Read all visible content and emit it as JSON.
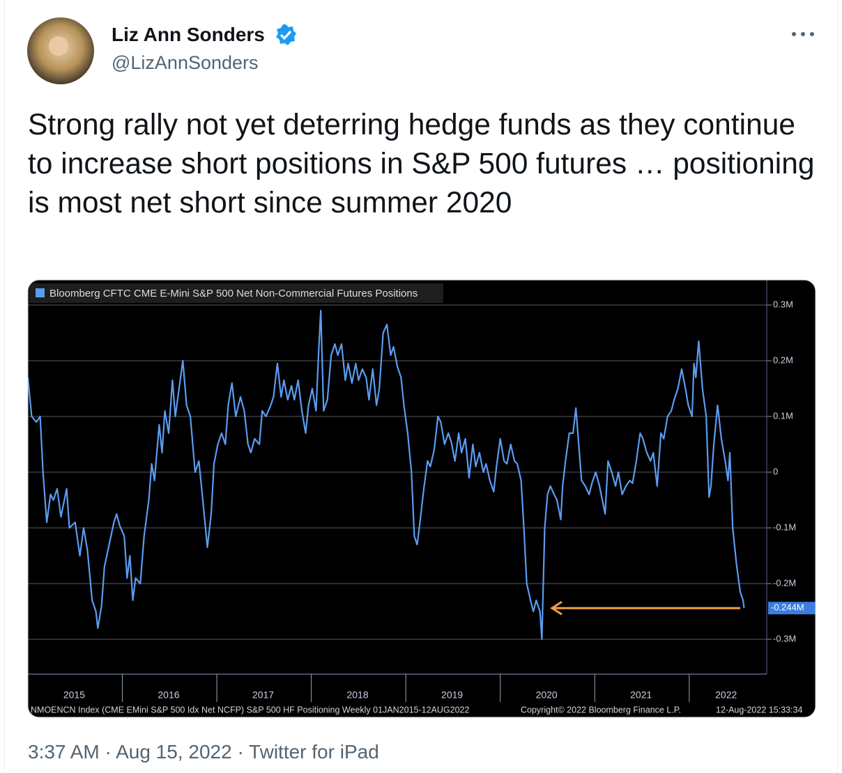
{
  "tweet": {
    "name": "Liz Ann Sonders",
    "handle": "@LizAnnSonders",
    "text": "Strong rally not yet deterring hedge funds as they continue to increase short positions in S&P 500 futures … positioning is most net short since summer 2020",
    "meta": "3:37 AM · Aug 15, 2022 · Twitter for iPad"
  },
  "chart_data": {
    "type": "line",
    "x": [
      2015.0,
      2015.04,
      2015.09,
      2015.13,
      2015.16,
      2015.2,
      2015.24,
      2015.27,
      2015.31,
      2015.35,
      2015.41,
      2015.44,
      2015.5,
      2015.55,
      2015.59,
      2015.63,
      2015.68,
      2015.72,
      2015.74,
      2015.78,
      2015.81,
      2015.86,
      2015.91,
      2015.94,
      2015.97,
      2016.02,
      2016.05,
      2016.08,
      2016.11,
      2016.14,
      2016.19,
      2016.23,
      2016.28,
      2016.31,
      2016.34,
      2016.39,
      2016.42,
      2016.45,
      2016.49,
      2016.53,
      2016.56,
      2016.6,
      2016.64,
      2016.68,
      2016.72,
      2016.77,
      2016.81,
      2016.84,
      2016.88,
      2016.9,
      2016.94,
      2016.97,
      2017.01,
      2017.05,
      2017.09,
      2017.12,
      2017.16,
      2017.2,
      2017.25,
      2017.29,
      2017.33,
      2017.36,
      2017.4,
      2017.45,
      2017.48,
      2017.52,
      2017.57,
      2017.6,
      2017.64,
      2017.68,
      2017.71,
      2017.75,
      2017.79,
      2017.82,
      2017.86,
      2017.9,
      2017.94,
      2017.97,
      2018.01,
      2018.05,
      2018.08,
      2018.1,
      2018.13,
      2018.17,
      2018.21,
      2018.25,
      2018.28,
      2018.32,
      2018.36,
      2018.39,
      2018.43,
      2018.47,
      2018.5,
      2018.54,
      2018.58,
      2018.61,
      2018.65,
      2018.69,
      2018.72,
      2018.76,
      2018.8,
      2018.84,
      2018.87,
      2018.91,
      2018.95,
      2018.98,
      2019.02,
      2019.06,
      2019.09,
      2019.12,
      2019.15,
      2019.19,
      2019.23,
      2019.26,
      2019.3,
      2019.34,
      2019.37,
      2019.41,
      2019.45,
      2019.48,
      2019.52,
      2019.56,
      2019.59,
      2019.63,
      2019.67,
      2019.71,
      2019.74,
      2019.78,
      2019.82,
      2019.85,
      2019.89,
      2019.93,
      2019.96,
      2020.0,
      2020.04,
      2020.07,
      2020.11,
      2020.15,
      2020.18,
      2020.22,
      2020.25,
      2020.28,
      2020.32,
      2020.35,
      2020.38,
      2020.42,
      2020.44,
      2020.47,
      2020.5,
      2020.53,
      2020.57,
      2020.6,
      2020.64,
      2020.66,
      2020.69,
      2020.73,
      2020.77,
      2020.8,
      2020.83,
      2020.86,
      2020.9,
      2020.94,
      2020.97,
      2021.01,
      2021.05,
      2021.08,
      2021.11,
      2021.14,
      2021.18,
      2021.22,
      2021.25,
      2021.29,
      2021.33,
      2021.37,
      2021.4,
      2021.44,
      2021.48,
      2021.51,
      2021.55,
      2021.59,
      2021.62,
      2021.66,
      2021.7,
      2021.73,
      2021.77,
      2021.81,
      2021.84,
      2021.88,
      2021.92,
      2021.96,
      2021.99,
      2022.03,
      2022.05,
      2022.07,
      2022.1,
      2022.14,
      2022.18,
      2022.21,
      2022.23,
      2022.26,
      2022.3,
      2022.34,
      2022.38,
      2022.41,
      2022.43,
      2022.46,
      2022.5,
      2022.54,
      2022.57,
      2022.58
    ],
    "series": [
      {
        "name": "Bloomberg CFTC CME E-Mini S&P 500 Net Non-Commercial Futures Positions",
        "color": "#5b9cf2",
        "values": [
          0.17,
          0.1,
          0.09,
          0.1,
          0.0,
          -0.09,
          -0.04,
          -0.05,
          -0.03,
          -0.08,
          -0.03,
          -0.1,
          -0.09,
          -0.15,
          -0.1,
          -0.14,
          -0.23,
          -0.25,
          -0.28,
          -0.24,
          -0.17,
          -0.13,
          -0.09,
          -0.075,
          -0.095,
          -0.115,
          -0.19,
          -0.15,
          -0.23,
          -0.19,
          -0.2,
          -0.115,
          -0.05,
          0.015,
          -0.015,
          0.085,
          0.035,
          0.11,
          0.07,
          0.165,
          0.1,
          0.15,
          0.2,
          0.12,
          0.1,
          0.0,
          0.02,
          -0.03,
          -0.1,
          -0.135,
          -0.075,
          0.015,
          0.05,
          0.07,
          0.05,
          0.12,
          0.16,
          0.1,
          0.135,
          0.11,
          0.05,
          0.035,
          0.06,
          0.05,
          0.11,
          0.1,
          0.12,
          0.135,
          0.195,
          0.135,
          0.165,
          0.13,
          0.155,
          0.13,
          0.165,
          0.11,
          0.07,
          0.12,
          0.15,
          0.11,
          0.225,
          0.29,
          0.11,
          0.13,
          0.21,
          0.23,
          0.21,
          0.23,
          0.165,
          0.195,
          0.16,
          0.195,
          0.165,
          0.185,
          0.17,
          0.13,
          0.185,
          0.12,
          0.15,
          0.25,
          0.265,
          0.21,
          0.225,
          0.19,
          0.17,
          0.12,
          0.07,
          0.0,
          -0.115,
          -0.13,
          -0.09,
          -0.03,
          0.02,
          0.01,
          0.04,
          0.1,
          0.09,
          0.05,
          0.07,
          0.055,
          0.02,
          0.07,
          0.035,
          0.06,
          -0.01,
          0.05,
          0.01,
          0.035,
          0.0,
          0.015,
          -0.015,
          -0.035,
          0.01,
          0.06,
          0.02,
          0.015,
          0.05,
          0.02,
          0.015,
          -0.015,
          -0.1,
          -0.2,
          -0.23,
          -0.25,
          -0.23,
          -0.25,
          -0.3,
          -0.1,
          -0.04,
          -0.025,
          -0.04,
          -0.05,
          -0.085,
          -0.025,
          0.02,
          0.07,
          0.07,
          0.115,
          0.05,
          -0.015,
          -0.025,
          -0.04,
          -0.02,
          0.0,
          -0.025,
          -0.05,
          -0.075,
          0.02,
          0.0,
          -0.025,
          0.0,
          -0.04,
          -0.025,
          -0.015,
          -0.02,
          0.02,
          0.07,
          0.06,
          0.035,
          0.02,
          0.035,
          -0.025,
          0.07,
          0.06,
          0.1,
          0.11,
          0.13,
          0.15,
          0.185,
          0.15,
          0.12,
          0.1,
          0.195,
          0.17,
          0.235,
          0.15,
          0.1,
          -0.045,
          -0.025,
          0.05,
          0.12,
          0.06,
          0.02,
          -0.015,
          0.035,
          -0.1,
          -0.165,
          -0.215,
          -0.23,
          -0.244
        ]
      }
    ],
    "xlim": [
      2015,
      2022.82
    ],
    "xticks": [
      {
        "value": 2015.49,
        "label": "2015"
      },
      {
        "value": 2016.49,
        "label": "2016"
      },
      {
        "value": 2017.49,
        "label": "2017"
      },
      {
        "value": 2018.49,
        "label": "2018"
      },
      {
        "value": 2019.49,
        "label": "2019"
      },
      {
        "value": 2020.49,
        "label": "2020"
      },
      {
        "value": 2021.49,
        "label": "2021"
      },
      {
        "value": 2022.39,
        "label": "2022"
      }
    ],
    "ylim": [
      -0.3625,
      0.345
    ],
    "yticks": [
      {
        "value": 0.3,
        "label": "0.3M"
      },
      {
        "value": 0.2,
        "label": "0.2M"
      },
      {
        "value": 0.1,
        "label": "0.1M"
      },
      0,
      {
        "value": -0.1,
        "label": "-0.1M"
      },
      {
        "value": -0.2,
        "label": "-0.2M"
      },
      {
        "value": -0.3,
        "label": "-0.3M"
      }
    ],
    "grid": true,
    "last_value": {
      "value": -0.244,
      "label": "-0.244M"
    },
    "footer_source": "NMOENCN Index (CME EMini S&P 500 Idx Net NCFP) S&P 500 HF Positioning  Weekly 01JAN2015-12AUG2022",
    "footer_copyright": "Copyright© 2022 Bloomberg Finance L.P.",
    "footer_date": "12-Aug-2022 15:33:34"
  }
}
